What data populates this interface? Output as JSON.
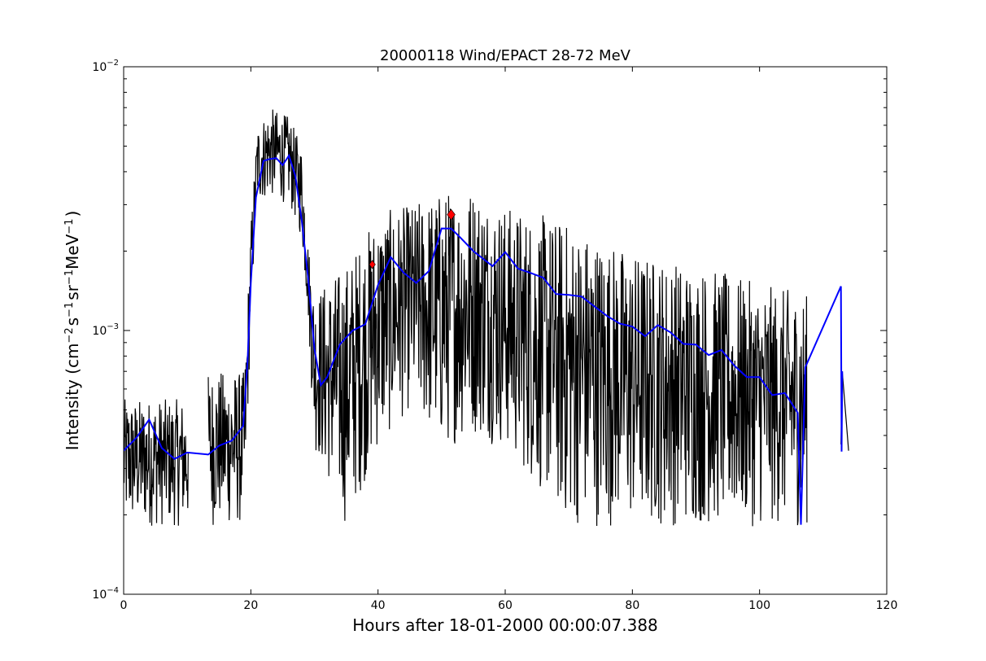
{
  "chart_data": {
    "type": "line",
    "title": "20000118 Wind/EPACT 28-72 MeV",
    "xlabel": "Hours after 18-01-2000 00:00:07.388",
    "ylabel_parts": {
      "prefix": "Intensity (cm",
      "exp1": "−2",
      "s": "s",
      "exp2": "−1",
      "sr": "sr",
      "exp3": "−1",
      "mev": "MeV",
      "exp4": "−1",
      "suffix": ")"
    },
    "x_scale": "linear",
    "y_scale": "log",
    "xlim": [
      0,
      120
    ],
    "ylim": [
      0.0001,
      0.01
    ],
    "x_ticks": [
      0,
      20,
      40,
      60,
      80,
      100,
      120
    ],
    "y_ticks": [
      {
        "value": 0.0001,
        "base": "10",
        "exp": "−4"
      },
      {
        "value": 0.001,
        "base": "10",
        "exp": "−3"
      },
      {
        "value": 0.01,
        "base": "10",
        "exp": "−2"
      }
    ],
    "grid": false,
    "colors": {
      "raw": "#000000",
      "smoothed": "#0000ff",
      "markers": "#ff0000"
    },
    "series": [
      {
        "style": "raw-noisy",
        "color": "#000000",
        "envelope": [
          {
            "x": 0.0,
            "low": 0.00018,
            "high": 0.00055
          },
          {
            "x": 10.0,
            "low": 0.00018,
            "high": 0.00055
          },
          {
            "x": 13.5,
            "low": 0.00018,
            "high": 0.0007
          },
          {
            "x": 19.0,
            "low": 0.00018,
            "high": 0.0007
          },
          {
            "x": 20.0,
            "low": 0.0011,
            "high": 0.0025
          },
          {
            "x": 21.0,
            "low": 0.003,
            "high": 0.006
          },
          {
            "x": 23.0,
            "low": 0.0032,
            "high": 0.007
          },
          {
            "x": 26.0,
            "low": 0.003,
            "high": 0.0065
          },
          {
            "x": 28.0,
            "low": 0.0022,
            "high": 0.005
          },
          {
            "x": 29.0,
            "low": 0.0011,
            "high": 0.0022
          },
          {
            "x": 30.0,
            "low": 0.00035,
            "high": 0.0014
          },
          {
            "x": 35.0,
            "low": 0.00018,
            "high": 0.0018
          },
          {
            "x": 40.0,
            "low": 0.00035,
            "high": 0.0028
          },
          {
            "x": 45.0,
            "low": 0.0005,
            "high": 0.003
          },
          {
            "x": 50.0,
            "low": 0.00035,
            "high": 0.0034
          },
          {
            "x": 55.0,
            "low": 0.0004,
            "high": 0.0036
          },
          {
            "x": 60.0,
            "low": 0.00035,
            "high": 0.003
          },
          {
            "x": 70.0,
            "low": 0.00018,
            "high": 0.0026
          },
          {
            "x": 80.0,
            "low": 0.00018,
            "high": 0.002
          },
          {
            "x": 90.0,
            "low": 0.00018,
            "high": 0.0018
          },
          {
            "x": 100.0,
            "low": 0.00018,
            "high": 0.0015
          },
          {
            "x": 107.3,
            "low": 0.00018,
            "high": 0.0014
          },
          {
            "x": 112.8,
            "low": 0.00035,
            "high": 0.0007
          },
          {
            "x": 114.0,
            "low": 0.00035,
            "high": 0.00035
          }
        ],
        "gaps": [
          [
            10.2,
            13.3
          ],
          [
            107.5,
            112.7
          ]
        ]
      },
      {
        "style": "smoothed",
        "color": "#0000ff",
        "points": [
          [
            0.0,
            0.00035
          ],
          [
            2.0,
            0.0004
          ],
          [
            4.0,
            0.00045
          ],
          [
            6.0,
            0.00038
          ],
          [
            8.0,
            0.00032
          ],
          [
            10.0,
            0.00035
          ],
          [
            13.3,
            0.00035
          ],
          [
            15.0,
            0.00038
          ],
          [
            17.0,
            0.0004
          ],
          [
            18.8,
            0.00042
          ],
          [
            19.5,
            0.0008
          ],
          [
            20.0,
            0.0015
          ],
          [
            20.8,
            0.003
          ],
          [
            22.0,
            0.0045
          ],
          [
            23.0,
            0.0042
          ],
          [
            24.0,
            0.0046
          ],
          [
            25.0,
            0.0043
          ],
          [
            26.0,
            0.0045
          ],
          [
            27.0,
            0.004
          ],
          [
            28.0,
            0.0025
          ],
          [
            29.0,
            0.0016
          ],
          [
            30.0,
            0.0009
          ],
          [
            31.0,
            0.00065
          ],
          [
            32.0,
            0.0007
          ],
          [
            34.0,
            0.0009
          ],
          [
            36.0,
            0.00095
          ],
          [
            38.0,
            0.0011
          ],
          [
            40.0,
            0.0015
          ],
          [
            42.0,
            0.0018
          ],
          [
            44.0,
            0.0017
          ],
          [
            46.0,
            0.0016
          ],
          [
            48.0,
            0.0018
          ],
          [
            50.0,
            0.0023
          ],
          [
            51.5,
            0.0025
          ],
          [
            53.0,
            0.0021
          ],
          [
            55.0,
            0.0019
          ],
          [
            58.0,
            0.0018
          ],
          [
            60.0,
            0.0019
          ],
          [
            62.0,
            0.0018
          ],
          [
            64.0,
            0.0016
          ],
          [
            66.0,
            0.0016
          ],
          [
            68.0,
            0.0014
          ],
          [
            70.0,
            0.0014
          ],
          [
            72.0,
            0.0013
          ],
          [
            74.0,
            0.0013
          ],
          [
            76.0,
            0.0012
          ],
          [
            78.0,
            0.0011
          ],
          [
            80.0,
            0.0011
          ],
          [
            82.0,
            0.001
          ],
          [
            84.0,
            0.001
          ],
          [
            86.0,
            0.00095
          ],
          [
            88.0,
            0.0009
          ],
          [
            90.0,
            0.0009
          ],
          [
            92.0,
            0.00085
          ],
          [
            94.0,
            0.0008
          ],
          [
            96.0,
            0.00075
          ],
          [
            98.0,
            0.0007
          ],
          [
            100.0,
            0.00065
          ],
          [
            102.0,
            0.0006
          ],
          [
            104.0,
            0.00055
          ],
          [
            106.0,
            0.0005
          ],
          [
            106.5,
            0.00019
          ],
          [
            107.2,
            0.0007
          ],
          [
            112.8,
            0.0015
          ],
          [
            112.9,
            0.00037
          ],
          [
            113.0,
            0.0007
          ]
        ]
      }
    ],
    "markers": [
      {
        "x": 39.1,
        "y": 0.00178,
        "color": "#ff0000",
        "shape": "diamond"
      },
      {
        "x": 51.5,
        "y": 0.00275,
        "color": "#ff0000",
        "shape": "diamond"
      }
    ]
  }
}
